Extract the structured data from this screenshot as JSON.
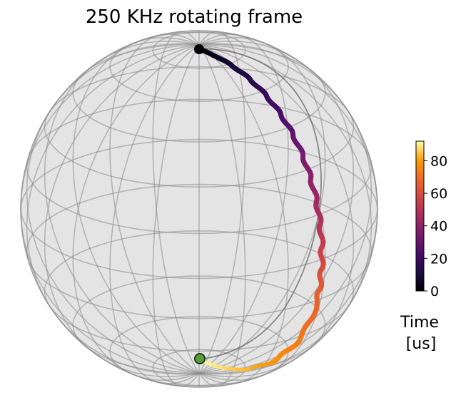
{
  "chart_data": {
    "type": "bloch-sphere-trajectory",
    "title": "250 KHz rotating frame",
    "colorbar": {
      "label_lines": [
        "Time",
        "[us]"
      ],
      "range": [
        0,
        92
      ],
      "ticks": [
        0,
        20,
        40,
        60,
        80
      ],
      "colormap": "inferno"
    },
    "colors": {
      "sphere_fill": "#e3e3e3",
      "wire": "#8a8a8a",
      "start_marker": "#000000",
      "end_marker": "#5a9b3a"
    },
    "trajectory": {
      "start_time_us": 0,
      "end_time_us": 92,
      "start_point": "north pole (|0⟩)",
      "end_point": "south pole (|1⟩)"
    }
  }
}
